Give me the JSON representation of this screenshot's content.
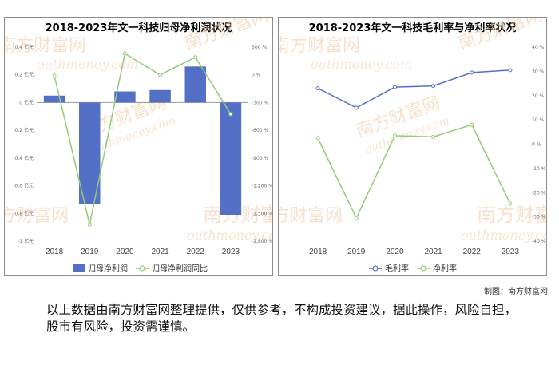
{
  "credit": "制图：南方财富网",
  "disclaimer": "以上数据由南方财富网整理提供，仅供参考，不构成投资建议，据此操作，风险自担，股市有风险，投资需谨慎。",
  "watermark": {
    "cn": "南方财富网",
    "en": "outhmoney.com"
  },
  "colors": {
    "bar": "#5470c6",
    "line_green": "#91cc75",
    "line_blue": "#5470c6"
  },
  "chart_data": [
    {
      "type": "bar",
      "title": "2018-2023年文一科技归母净利润状况",
      "categories": [
        "2018",
        "2019",
        "2020",
        "2021",
        "2022",
        "2023"
      ],
      "series": [
        {
          "name": "归母净利润",
          "type": "bar",
          "axis": "left",
          "values": [
            0.05,
            -0.73,
            0.08,
            0.09,
            0.26,
            -0.81
          ]
        },
        {
          "name": "归母净利润同比",
          "type": "line",
          "axis": "right",
          "values": [
            -10,
            -1620,
            230,
            0,
            190,
            -425
          ]
        }
      ],
      "left_axis": {
        "ticks": [
          0.4,
          0.2,
          0,
          -0.2,
          -0.4,
          -0.6,
          -0.8,
          -1
        ],
        "tick_labels": [
          "0.4 亿元",
          "0.2 亿元",
          "0 亿元",
          "-0.2 亿元",
          "-0.4 亿元",
          "-0.6 亿元",
          "-0.8 亿元",
          "-1 亿元"
        ],
        "ylim": [
          -1,
          0.4
        ]
      },
      "right_axis": {
        "ticks": [
          300,
          0,
          -300,
          -600,
          -900,
          -1200,
          -1500,
          -1800
        ],
        "tick_labels": [
          "300 %",
          "0 %",
          "-300 %",
          "-600 %",
          "-900 %",
          "-1,200 %",
          "-1,500 %",
          "-1,800 %"
        ],
        "ylim": [
          -1800,
          300
        ]
      },
      "legend": [
        "归母净利润",
        "归母净利润同比"
      ],
      "legend_position": "bottom"
    },
    {
      "type": "line",
      "title": "2018-2023年文一科技毛利率与净利率状况",
      "categories": [
        "2018",
        "2019",
        "2020",
        "2021",
        "2022",
        "2023"
      ],
      "series": [
        {
          "name": "毛利率",
          "values": [
            23,
            15,
            23.5,
            24,
            29.5,
            30.5
          ]
        },
        {
          "name": "净利率",
          "values": [
            2.5,
            -30.5,
            3.5,
            3,
            8,
            -24.5
          ]
        }
      ],
      "y_axis": {
        "ticks": [
          40,
          30,
          20,
          10,
          0,
          -10,
          -20,
          -30,
          -40
        ],
        "tick_labels": [
          "40 %",
          "30 %",
          "20 %",
          "10 %",
          "0 %",
          "-10 %",
          "-20 %",
          "-30 %",
          "-40 %"
        ],
        "ylim": [
          -40,
          40
        ]
      },
      "legend": [
        "毛利率",
        "净利率"
      ],
      "legend_position": "bottom"
    }
  ]
}
